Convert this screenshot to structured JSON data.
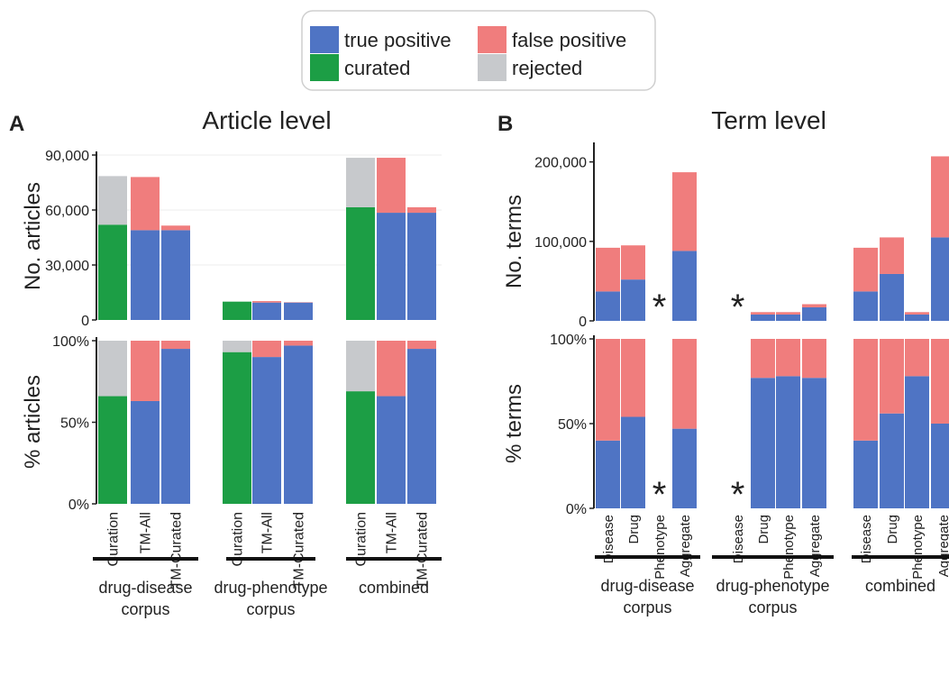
{
  "legend": {
    "entries": [
      {
        "key": "tp",
        "label": "true positive",
        "color": "#4f74c4"
      },
      {
        "key": "fp",
        "label": "false positive",
        "color": "#f07d7d"
      },
      {
        "key": "cur",
        "label": "curated",
        "color": "#1c9e45"
      },
      {
        "key": "rej",
        "label": "rejected",
        "color": "#c7c9cc"
      }
    ]
  },
  "panels": [
    {
      "letter": "A",
      "title": "Article level"
    },
    {
      "letter": "B",
      "title": "Term level"
    }
  ],
  "groups": {
    "A": [
      {
        "label_lines": [
          "drug-disease",
          "corpus"
        ],
        "bars": [
          "Curation",
          "TM-All",
          "TM-Curated"
        ]
      },
      {
        "label_lines": [
          "drug-phenotype",
          "corpus"
        ],
        "bars": [
          "Curation",
          "TM-All",
          "TM-Curated"
        ]
      },
      {
        "label_lines": [
          "combined"
        ],
        "bars": [
          "Curation",
          "TM-All",
          "TM-Curated"
        ]
      }
    ],
    "B": [
      {
        "label_lines": [
          "drug-disease",
          "corpus"
        ],
        "bars": [
          "Disease",
          "Drug",
          "Phenotype",
          "Aggregate"
        ]
      },
      {
        "label_lines": [
          "drug-phenotype",
          "corpus"
        ],
        "bars": [
          "Disease",
          "Drug",
          "Phenotype",
          "Aggregate"
        ]
      },
      {
        "label_lines": [
          "combined"
        ],
        "bars": [
          "Disease",
          "Drug",
          "Phenotype",
          "Aggregate"
        ]
      }
    ]
  },
  "missing_marker": "*",
  "chart_data": [
    {
      "type": "bar",
      "stacked": true,
      "panel": "A",
      "ylabel": "No. articles",
      "ylim": [
        0,
        90000
      ],
      "yticks": [
        0,
        30000,
        60000,
        90000
      ],
      "ytick_labels": [
        "0",
        "30,000",
        "60,000",
        "90,000"
      ],
      "categories": [
        "Curation",
        "TM-All",
        "TM-Curated",
        "Curation",
        "TM-All",
        "TM-Curated",
        "Curation",
        "TM-All",
        "TM-Curated"
      ],
      "series": [
        {
          "name": "curated",
          "values": [
            52000,
            0,
            0,
            10000,
            0,
            0,
            61500,
            0,
            0
          ]
        },
        {
          "name": "rejected",
          "values": [
            26500,
            0,
            0,
            0,
            0,
            0,
            27000,
            0,
            0
          ]
        },
        {
          "name": "true positive",
          "values": [
            0,
            49000,
            49000,
            0,
            9500,
            9500,
            0,
            58500,
            58500
          ]
        },
        {
          "name": "false positive",
          "values": [
            0,
            29000,
            2500,
            0,
            800,
            200,
            0,
            30000,
            3000
          ]
        }
      ]
    },
    {
      "type": "bar",
      "stacked": true,
      "panel": "A",
      "ylabel": "% articles",
      "ylim": [
        0,
        100
      ],
      "yticks": [
        0,
        50,
        100
      ],
      "ytick_labels": [
        "0%",
        "50%",
        "100%"
      ],
      "categories": [
        "Curation",
        "TM-All",
        "TM-Curated",
        "Curation",
        "TM-All",
        "TM-Curated",
        "Curation",
        "TM-All",
        "TM-Curated"
      ],
      "series": [
        {
          "name": "curated",
          "values": [
            66,
            0,
            0,
            93,
            0,
            0,
            69,
            0,
            0
          ]
        },
        {
          "name": "rejected",
          "values": [
            34,
            0,
            0,
            7,
            0,
            0,
            31,
            0,
            0
          ]
        },
        {
          "name": "true positive",
          "values": [
            0,
            63,
            95,
            0,
            90,
            97,
            0,
            66,
            95
          ]
        },
        {
          "name": "false positive",
          "values": [
            0,
            37,
            5,
            0,
            10,
            3,
            0,
            34,
            5
          ]
        }
      ]
    },
    {
      "type": "bar",
      "stacked": true,
      "panel": "B",
      "ylabel": "No. terms",
      "ylim": [
        0,
        220000
      ],
      "yticks": [
        0,
        100000,
        200000
      ],
      "ytick_labels": [
        "0",
        "100,000",
        "200,000"
      ],
      "categories": [
        "Disease",
        "Drug",
        "Phenotype",
        "Aggregate",
        "Disease",
        "Drug",
        "Phenotype",
        "Aggregate",
        "Disease",
        "Drug",
        "Phenotype",
        "Aggregate"
      ],
      "missing": [
        false,
        false,
        true,
        false,
        true,
        false,
        false,
        false,
        false,
        false,
        false,
        false
      ],
      "series": [
        {
          "name": "true positive",
          "values": [
            37000,
            52000,
            0,
            88000,
            0,
            8000,
            8000,
            17000,
            37000,
            59000,
            8000,
            105000
          ]
        },
        {
          "name": "false positive",
          "values": [
            55000,
            43000,
            0,
            99000,
            0,
            3000,
            3000,
            4000,
            55000,
            46000,
            3000,
            102000
          ]
        }
      ]
    },
    {
      "type": "bar",
      "stacked": true,
      "panel": "B",
      "ylabel": "% terms",
      "ylim": [
        0,
        100
      ],
      "yticks": [
        0,
        50,
        100
      ],
      "ytick_labels": [
        "0%",
        "50%",
        "100%"
      ],
      "categories": [
        "Disease",
        "Drug",
        "Phenotype",
        "Aggregate",
        "Disease",
        "Drug",
        "Phenotype",
        "Aggregate",
        "Disease",
        "Drug",
        "Phenotype",
        "Aggregate"
      ],
      "missing": [
        false,
        false,
        true,
        false,
        true,
        false,
        false,
        false,
        false,
        false,
        false,
        false
      ],
      "series": [
        {
          "name": "true positive",
          "values": [
            40,
            54,
            0,
            47,
            0,
            77,
            78,
            77,
            40,
            56,
            78,
            50
          ]
        },
        {
          "name": "false positive",
          "values": [
            60,
            46,
            0,
            53,
            0,
            23,
            22,
            23,
            60,
            44,
            22,
            50
          ]
        }
      ]
    }
  ]
}
